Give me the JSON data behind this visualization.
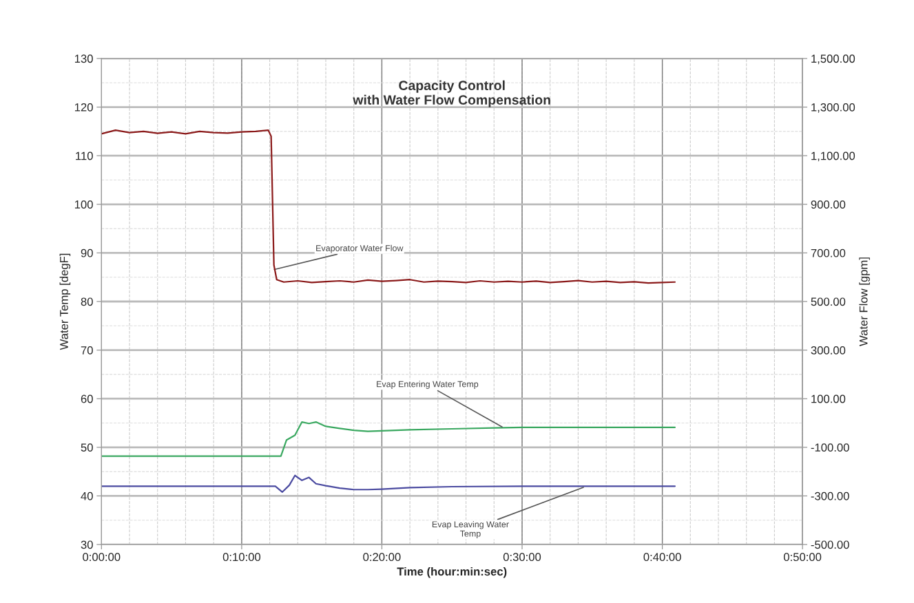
{
  "chart_data": {
    "type": "line",
    "title": "Capacity Control\nwith Water Flow Compensation",
    "xlabel": "Time (hour:min:sec)",
    "ylabel": "Water Temp [degF]",
    "y2label": "Water Flow [gpm]",
    "xlim": [
      0,
      0.8333
    ],
    "xticks": [
      {
        "value": 0,
        "label": "0:00:00"
      },
      {
        "value": 0.1667,
        "label": "0:10:00"
      },
      {
        "value": 0.3333,
        "label": "0:20:00"
      },
      {
        "value": 0.5,
        "label": "0:30:00"
      },
      {
        "value": 0.6667,
        "label": "0:40:00"
      },
      {
        "value": 0.8333,
        "label": "0:50:00"
      }
    ],
    "ylim": [
      30,
      130
    ],
    "yticks": [
      30,
      40,
      50,
      60,
      70,
      80,
      90,
      100,
      110,
      120,
      130
    ],
    "y2lim": [
      -500,
      1500
    ],
    "y2ticks": [
      {
        "value": -500,
        "label": "-500.00"
      },
      {
        "value": -300,
        "label": "-300.00"
      },
      {
        "value": -100,
        "label": "-100.00"
      },
      {
        "value": 100,
        "label": "100.00"
      },
      {
        "value": 300,
        "label": "300.00"
      },
      {
        "value": 500,
        "label": "500.00"
      },
      {
        "value": 700,
        "label": "700.00"
      },
      {
        "value": 900,
        "label": "900.00"
      },
      {
        "value": 1100,
        "label": "1,100.00"
      },
      {
        "value": 1300,
        "label": "1,300.00"
      },
      {
        "value": 1500,
        "label": "1,500.00"
      }
    ],
    "grid": true,
    "legend": false,
    "marker": "none",
    "line_style": "solid",
    "series": [
      {
        "color": "#8b1a1a",
        "axis": "y2",
        "x": [
          0,
          0.0167,
          0.0333,
          0.05,
          0.0667,
          0.0833,
          0.1,
          0.1167,
          0.1333,
          0.15,
          0.1667,
          0.1833,
          0.1983,
          0.2017,
          0.205,
          0.2083,
          0.2167,
          0.2333,
          0.25,
          0.2667,
          0.2833,
          0.3,
          0.3167,
          0.3333,
          0.35,
          0.3667,
          0.3833,
          0.4,
          0.4167,
          0.4333,
          0.45,
          0.4667,
          0.4833,
          0.5,
          0.5167,
          0.5333,
          0.55,
          0.5667,
          0.5833,
          0.6,
          0.6167,
          0.6333,
          0.65,
          0.6667,
          0.6817
        ],
        "values": [
          1190,
          1205,
          1195,
          1200,
          1192,
          1198,
          1190,
          1200,
          1195,
          1193,
          1198,
          1200,
          1205,
          1180,
          650,
          590,
          580,
          585,
          578,
          582,
          585,
          580,
          588,
          583,
          586,
          590,
          580,
          584,
          582,
          578,
          585,
          580,
          583,
          580,
          584,
          578,
          582,
          586,
          580,
          583,
          578,
          581,
          576,
          578,
          580
        ]
      },
      {
        "color": "#3aa860",
        "x": [
          0,
          0.2133,
          0.22,
          0.23,
          0.2383,
          0.2467,
          0.255,
          0.2667,
          0.2833,
          0.3,
          0.3167,
          0.3333,
          0.3667,
          0.4167,
          0.4667,
          0.5,
          0.5833,
          0.6817
        ],
        "values": [
          48.2,
          48.2,
          51.5,
          52.5,
          55.2,
          54.9,
          55.2,
          54.3,
          53.9,
          53.5,
          53.3,
          53.4,
          53.6,
          53.8,
          54.0,
          54.1,
          54.1,
          54.1
        ]
      },
      {
        "color": "#4a4aa0",
        "x": [
          0,
          0.2067,
          0.215,
          0.2233,
          0.23,
          0.2383,
          0.2467,
          0.255,
          0.2667,
          0.2833,
          0.3,
          0.3167,
          0.3333,
          0.3667,
          0.4167,
          0.5,
          0.6817
        ],
        "values": [
          42.0,
          42.0,
          40.8,
          42.2,
          44.2,
          43.2,
          43.8,
          42.5,
          42.1,
          41.6,
          41.3,
          41.3,
          41.4,
          41.7,
          41.9,
          42.0,
          42.0
        ]
      }
    ],
    "annotations": [
      {
        "text": "Evaporator Water Flow",
        "x": 0.2033,
        "y": 86.5
      },
      {
        "text": "Evap Entering Water Temp",
        "x": 0.4783,
        "y": 54.0
      },
      {
        "text": "Evap Leaving Water\nTemp",
        "x": 0.575,
        "y": 41.9
      }
    ]
  }
}
